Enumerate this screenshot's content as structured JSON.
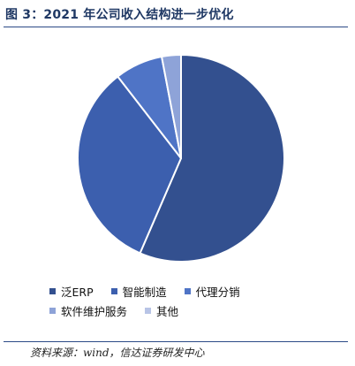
{
  "figure": {
    "title": "图 3：2021 年公司收入结构进一步优化",
    "source": "资料来源：wind，信达证券研发中心"
  },
  "chart_data": {
    "type": "pie",
    "title": "图 3：2021 年公司收入结构进一步优化",
    "categories": [
      "泛ERP",
      "智能制造",
      "代理分销",
      "软件维护服务",
      "其他"
    ],
    "values": [
      56.5,
      33.0,
      7.5,
      3.0,
      0.0
    ],
    "unit": "%",
    "colors": [
      "#33508f",
      "#3c5fae",
      "#4f74c6",
      "#8ea3d8",
      "#b8c4e6"
    ],
    "start_angle_deg": 0,
    "direction": "clockwise",
    "legend_position": "bottom"
  }
}
